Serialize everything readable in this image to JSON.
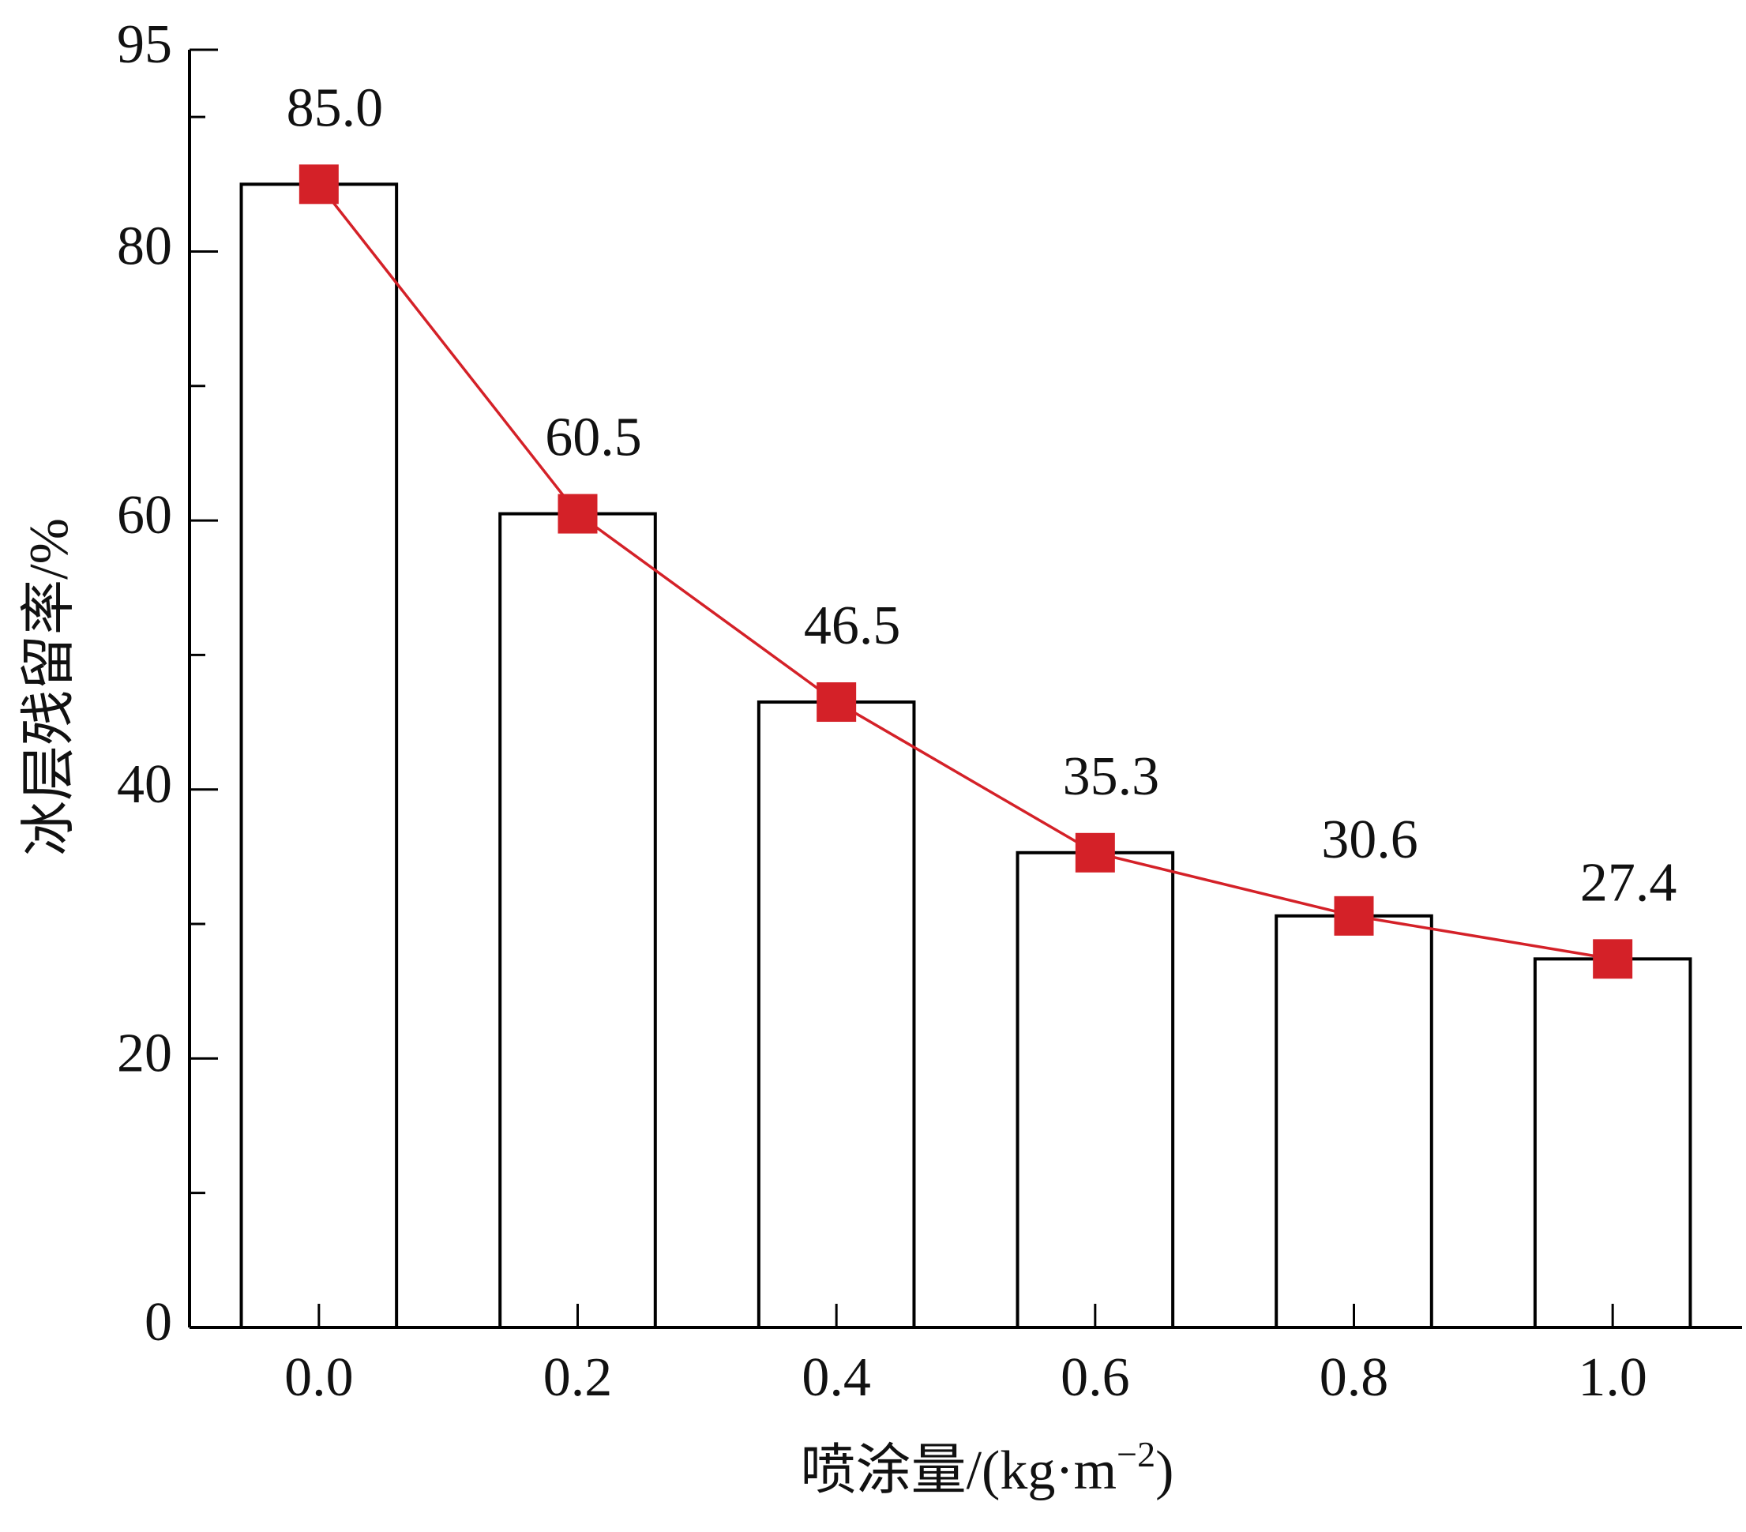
{
  "chart_data": {
    "type": "bar",
    "line_overlay": true,
    "categories": [
      "0.0",
      "0.2",
      "0.4",
      "0.6",
      "0.8",
      "1.0"
    ],
    "values": [
      85,
      60.5,
      46.5,
      35.3,
      30.6,
      27.4
    ],
    "value_labels": [
      "85.0",
      "60.5",
      "46.5",
      "35.3",
      "30.6",
      "27.4"
    ],
    "bar_color": "#ffffff",
    "bar_edge_color": "#000000",
    "line_color": "#d42128",
    "ylim": [
      0,
      95
    ],
    "yticks": [
      0,
      20,
      40,
      60,
      80,
      95
    ],
    "yminorticks": [
      10,
      30,
      50,
      70,
      90
    ],
    "xlabel": "喷涂量/(kg·m",
    "xlabel_sup": "−2",
    "xlabel_end": ")",
    "ylabel": "冰层残留率/%"
  }
}
